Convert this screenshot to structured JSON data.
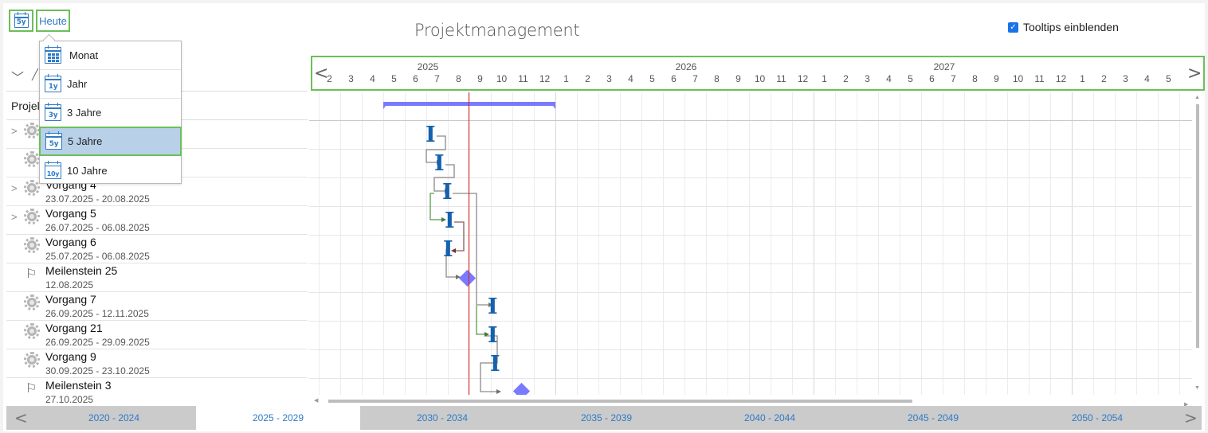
{
  "toolbar": {
    "view_button_icon": "calendar-5y-icon",
    "view_button_label": "5y",
    "today_label": "Heute"
  },
  "title": "Projektmanagement",
  "tooltips": {
    "label": "Tooltips einblenden",
    "checked": true
  },
  "view_menu": {
    "items": [
      {
        "label": "Monat",
        "icon": "calendar-month-icon",
        "badge": "",
        "selected": false
      },
      {
        "label": "Jahr",
        "icon": "calendar-1y-icon",
        "badge": "1y",
        "selected": false
      },
      {
        "label": "3 Jahre",
        "icon": "calendar-3y-icon",
        "badge": "3y",
        "selected": false
      },
      {
        "label": "5 Jahre",
        "icon": "calendar-5y-icon",
        "badge": "5y",
        "selected": true
      },
      {
        "label": "10 Jahre",
        "icon": "calendar-10y-icon",
        "badge": "10y",
        "selected": false
      }
    ]
  },
  "left_panel": {
    "collapse_icon": "chevron-down-icon",
    "root_label": "Projekt"
  },
  "tasks": [
    {
      "name": "",
      "dates": "",
      "type": "task",
      "expandable": true
    },
    {
      "name": "",
      "dates": "",
      "type": "task",
      "expandable": false
    },
    {
      "name": "Vorgang 4",
      "dates": "23.07.2025 - 20.08.2025",
      "type": "task",
      "expandable": true
    },
    {
      "name": "Vorgang 5",
      "dates": "26.07.2025 - 06.08.2025",
      "type": "task",
      "expandable": true
    },
    {
      "name": "Vorgang 6",
      "dates": "25.07.2025 - 06.08.2025",
      "type": "task",
      "expandable": false
    },
    {
      "name": "Meilenstein 25",
      "dates": "12.08.2025",
      "type": "milestone",
      "expandable": false
    },
    {
      "name": "Vorgang 7",
      "dates": "26.09.2025 - 12.11.2025",
      "type": "task",
      "expandable": false
    },
    {
      "name": "Vorgang 21",
      "dates": "26.09.2025 - 29.09.2025",
      "type": "task",
      "expandable": false
    },
    {
      "name": "Vorgang 9",
      "dates": "30.09.2025 - 23.10.2025",
      "type": "task",
      "expandable": false
    },
    {
      "name": "Meilenstein 3",
      "dates": "27.10.2025",
      "type": "milestone",
      "expandable": false
    }
  ],
  "timeline": {
    "years": [
      "2025",
      "2026",
      "2027"
    ],
    "months": [
      "2",
      "3",
      "4",
      "5",
      "6",
      "7",
      "8",
      "9",
      "10",
      "11",
      "12",
      "1",
      "2",
      "3",
      "4",
      "5",
      "6",
      "7",
      "8",
      "9",
      "10",
      "11",
      "12",
      "1",
      "2",
      "3",
      "4",
      "5",
      "6",
      "7",
      "8",
      "9",
      "10",
      "11",
      "12",
      "1",
      "2",
      "3",
      "4",
      "5"
    ],
    "prev_icon": "chevron-left-icon",
    "next_icon": "chevron-right-icon"
  },
  "periods": {
    "items": [
      "2020 - 2024",
      "2025 - 2029",
      "2030 - 2034",
      "2035 - 2039",
      "2040 - 2044",
      "2045 - 2049",
      "2050 - 2054"
    ],
    "active": "2025 - 2029"
  },
  "colors": {
    "accent": "#2e7ac7",
    "highlight_border": "#6bbf59",
    "selected_bg": "#b8d0e8",
    "summary_bar": "#7a7aff",
    "task_bar": "#1561ae",
    "today_line": "#e21b1b"
  }
}
